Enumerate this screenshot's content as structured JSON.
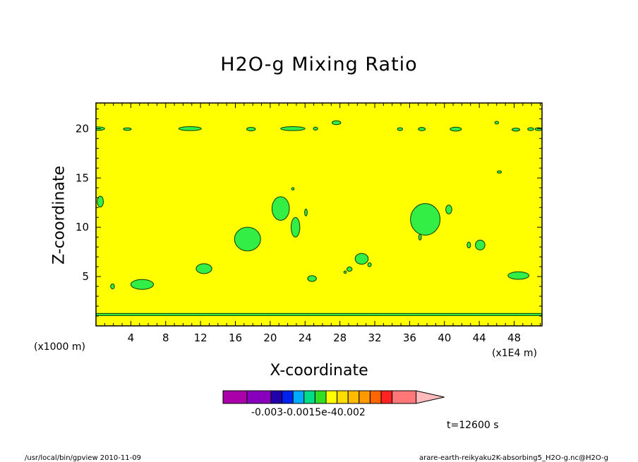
{
  "chart_data": {
    "type": "heatmap",
    "title": "H2O-g Mixing Ratio",
    "xlabel": "X-coordinate",
    "ylabel": "Z-coordinate",
    "x_unit": "(x1000 m)",
    "x_scale": "(x1E4 m)",
    "x_ticks": [
      4,
      8,
      12,
      16,
      20,
      24,
      28,
      32,
      36,
      40,
      44,
      48
    ],
    "y_ticks": [
      5,
      10,
      15,
      20
    ],
    "xlim": [
      0,
      51.2
    ],
    "ylim": [
      0,
      22.6
    ],
    "grid": false,
    "colors": {
      "background_field": "#ffff00",
      "contour_patch": "#33ee44",
      "contour_line": "#0a3a0a"
    },
    "patches": [
      {
        "x": 0.2,
        "y": 20.0,
        "rx": 0.8,
        "ry": 0.18
      },
      {
        "x": 3.6,
        "y": 19.95,
        "rx": 0.45,
        "ry": 0.13
      },
      {
        "x": 10.8,
        "y": 20.0,
        "rx": 1.3,
        "ry": 0.2
      },
      {
        "x": 17.8,
        "y": 19.95,
        "rx": 0.5,
        "ry": 0.18
      },
      {
        "x": 22.6,
        "y": 20.0,
        "rx": 1.4,
        "ry": 0.2
      },
      {
        "x": 25.2,
        "y": 20.0,
        "rx": 0.25,
        "ry": 0.15
      },
      {
        "x": 27.6,
        "y": 20.6,
        "rx": 0.5,
        "ry": 0.2
      },
      {
        "x": 34.9,
        "y": 19.95,
        "rx": 0.3,
        "ry": 0.15
      },
      {
        "x": 37.4,
        "y": 19.95,
        "rx": 0.4,
        "ry": 0.17
      },
      {
        "x": 41.3,
        "y": 19.95,
        "rx": 0.65,
        "ry": 0.2
      },
      {
        "x": 46.0,
        "y": 20.6,
        "rx": 0.22,
        "ry": 0.14
      },
      {
        "x": 48.2,
        "y": 19.9,
        "rx": 0.45,
        "ry": 0.15
      },
      {
        "x": 49.9,
        "y": 19.95,
        "rx": 0.35,
        "ry": 0.15
      },
      {
        "x": 50.8,
        "y": 19.95,
        "rx": 0.4,
        "ry": 0.15
      },
      {
        "x": 46.3,
        "y": 15.6,
        "rx": 0.25,
        "ry": 0.12
      },
      {
        "x": 22.6,
        "y": 13.9,
        "rx": 0.15,
        "ry": 0.12
      },
      {
        "x": 0.5,
        "y": 12.6,
        "rx": 0.35,
        "ry": 0.55
      },
      {
        "x": 21.2,
        "y": 11.9,
        "rx": 1.0,
        "ry": 1.2
      },
      {
        "x": 24.1,
        "y": 11.5,
        "rx": 0.15,
        "ry": 0.35
      },
      {
        "x": 22.9,
        "y": 10.0,
        "rx": 0.5,
        "ry": 1.0
      },
      {
        "x": 17.4,
        "y": 8.8,
        "rx": 1.5,
        "ry": 1.2
      },
      {
        "x": 37.8,
        "y": 10.8,
        "rx": 1.7,
        "ry": 1.6
      },
      {
        "x": 40.5,
        "y": 11.8,
        "rx": 0.35,
        "ry": 0.45
      },
      {
        "x": 37.2,
        "y": 9.0,
        "rx": 0.15,
        "ry": 0.3
      },
      {
        "x": 42.8,
        "y": 8.2,
        "rx": 0.2,
        "ry": 0.3
      },
      {
        "x": 44.1,
        "y": 8.2,
        "rx": 0.55,
        "ry": 0.5
      },
      {
        "x": 12.4,
        "y": 5.8,
        "rx": 0.9,
        "ry": 0.5
      },
      {
        "x": 30.5,
        "y": 6.8,
        "rx": 0.75,
        "ry": 0.55
      },
      {
        "x": 31.4,
        "y": 6.2,
        "rx": 0.2,
        "ry": 0.2
      },
      {
        "x": 29.1,
        "y": 5.75,
        "rx": 0.3,
        "ry": 0.22
      },
      {
        "x": 28.6,
        "y": 5.45,
        "rx": 0.15,
        "ry": 0.12
      },
      {
        "x": 5.3,
        "y": 4.2,
        "rx": 1.3,
        "ry": 0.5
      },
      {
        "x": 1.9,
        "y": 4.0,
        "rx": 0.22,
        "ry": 0.25
      },
      {
        "x": 24.8,
        "y": 4.8,
        "rx": 0.5,
        "ry": 0.3
      },
      {
        "x": 48.5,
        "y": 5.1,
        "rx": 1.2,
        "ry": 0.38
      }
    ],
    "band_z": 1.15
  },
  "colorbar": {
    "colors": [
      "#aa00aa",
      "#8800bb",
      "#2200aa",
      "#0022ee",
      "#00aaff",
      "#00dd88",
      "#33dd22",
      "#ffff00",
      "#ffdd00",
      "#ffbb00",
      "#ff9900",
      "#ff6600",
      "#ff2222",
      "#ff7777",
      "#ffbbbb"
    ],
    "labels": "-0.003-0.0015e-40.002"
  },
  "time_label": "t=12600 s",
  "footer_left": "/usr/local/bin/gpview   2010-11-09",
  "footer_right": "arare-earth-reikyaku2K-absorbing5_H2O-g.nc@H2O-g"
}
